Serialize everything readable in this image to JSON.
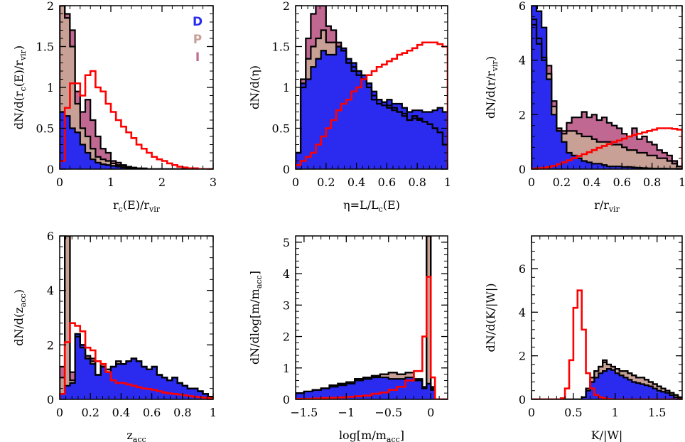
{
  "colors": {
    "D": "#2b2bf0",
    "P": "#c8a096",
    "I": "#c06892",
    "red": "#ff0000",
    "outline": "#000000"
  },
  "legend": {
    "D": "D",
    "P": "P",
    "I": "I"
  },
  "chart_data": [
    {
      "type": "histogram",
      "id": "rc",
      "ylabel_parts": [
        "dN/d(r",
        "c",
        "(E)/r",
        "vir",
        ")"
      ],
      "xlabel_parts": [
        "r",
        "c",
        "(E)/r",
        "vir",
        ""
      ],
      "xlim": [
        0,
        3
      ],
      "ylim": [
        0,
        2
      ],
      "xticks": [
        0,
        1,
        2,
        3
      ],
      "yticks": [
        0,
        0.5,
        1,
        1.5,
        2
      ],
      "ytick_labels": [
        "0",
        "0.5",
        "1",
        "1.5",
        "2"
      ],
      "legend": true,
      "edges": [
        0,
        0.1,
        0.2,
        0.3,
        0.4,
        0.5,
        0.6,
        0.7,
        0.8,
        0.9,
        1.0,
        1.1,
        1.2,
        1.3,
        1.4,
        1.5,
        1.6,
        1.7,
        1.8,
        1.9,
        2.0,
        2.1,
        2.2,
        2.3,
        2.4,
        2.5,
        2.6,
        2.7,
        2.8,
        2.9,
        3.0
      ],
      "I": [
        2.0,
        1.9,
        1.7,
        0.95,
        0.7,
        0.85,
        0.6,
        0.4,
        0.25,
        0.2,
        0.1,
        0.08,
        0.05,
        0.03,
        0.02,
        0.01,
        0.01,
        0,
        0,
        0,
        0,
        0,
        0,
        0,
        0,
        0,
        0,
        0,
        0,
        0
      ],
      "P": [
        2.0,
        1.85,
        1.5,
        0.8,
        0.5,
        0.4,
        0.25,
        0.15,
        0.12,
        0.1,
        0.07,
        0.05,
        0.04,
        0.02,
        0.01,
        0.01,
        0,
        0,
        0,
        0,
        0,
        0,
        0,
        0,
        0,
        0,
        0,
        0,
        0,
        0
      ],
      "D": [
        0.7,
        0.65,
        0.5,
        0.45,
        0.3,
        0.2,
        0.12,
        0.08,
        0.06,
        0.05,
        0.04,
        0.03,
        0.02,
        0.01,
        0.01,
        0,
        0,
        0,
        0,
        0,
        0,
        0,
        0,
        0,
        0,
        0,
        0,
        0,
        0,
        0
      ],
      "red": [
        0.1,
        0.75,
        1.05,
        1.05,
        0.9,
        1.15,
        1.2,
        1.0,
        0.95,
        0.8,
        0.7,
        0.6,
        0.52,
        0.45,
        0.38,
        0.3,
        0.25,
        0.2,
        0.15,
        0.12,
        0.1,
        0.07,
        0.05,
        0.03,
        0.02,
        0.01,
        0.01,
        0,
        0,
        0
      ]
    },
    {
      "type": "histogram",
      "id": "eta",
      "ylabel_parts": [
        "dN/d(η)"
      ],
      "xlabel_parts": [
        "η=L/L",
        "c",
        "(E)",
        "",
        ""
      ],
      "xlim": [
        0,
        1
      ],
      "ylim": [
        0,
        2
      ],
      "xticks": [
        0,
        0.2,
        0.4,
        0.6,
        0.8,
        1
      ],
      "yticks": [
        0,
        0.5,
        1,
        1.5,
        2
      ],
      "xtick_labels": [
        "0",
        "0.2",
        "0.4",
        "0.6",
        "0.8",
        "1"
      ],
      "ytick_labels": [
        "0",
        "0.5",
        "1",
        "1.5",
        "2"
      ],
      "edges": [
        0,
        0.033,
        0.067,
        0.1,
        0.133,
        0.167,
        0.2,
        0.233,
        0.267,
        0.3,
        0.333,
        0.367,
        0.4,
        0.433,
        0.467,
        0.5,
        0.533,
        0.567,
        0.6,
        0.633,
        0.667,
        0.7,
        0.733,
        0.767,
        0.8,
        0.833,
        0.867,
        0.9,
        0.933,
        0.967,
        1.0
      ],
      "I": [
        0.2,
        1.1,
        1.6,
        1.9,
        2.0,
        2.0,
        1.75,
        1.7,
        1.55,
        1.45,
        1.3,
        1.25,
        1.2,
        1.1,
        1.0,
        0.9,
        0.85,
        0.82,
        0.78,
        0.75,
        0.7,
        0.68,
        0.6,
        0.65,
        0.62,
        0.58,
        0.55,
        0.5,
        0.45,
        0.3
      ],
      "P": [
        0.2,
        1.0,
        1.35,
        1.5,
        1.6,
        1.7,
        1.55,
        1.55,
        1.5,
        1.45,
        1.3,
        1.2,
        1.15,
        1.1,
        1.05,
        0.85,
        0.8,
        0.78,
        0.75,
        0.72,
        0.7,
        0.65,
        0.6,
        0.62,
        0.6,
        0.58,
        0.55,
        0.5,
        0.45,
        0.3
      ],
      "D": [
        0.2,
        1.05,
        1.1,
        1.25,
        1.35,
        1.45,
        1.4,
        1.4,
        1.5,
        1.48,
        1.35,
        1.3,
        1.2,
        1.15,
        1.05,
        0.95,
        0.85,
        0.82,
        0.85,
        0.8,
        0.8,
        0.75,
        0.7,
        0.72,
        0.72,
        0.7,
        0.7,
        0.72,
        0.75,
        0.7
      ],
      "red": [
        0.05,
        0.1,
        0.15,
        0.2,
        0.3,
        0.4,
        0.5,
        0.6,
        0.72,
        0.8,
        0.85,
        0.95,
        1.0,
        1.1,
        1.15,
        1.2,
        1.25,
        1.28,
        1.32,
        1.35,
        1.4,
        1.42,
        1.45,
        1.48,
        1.52,
        1.55,
        1.55,
        1.55,
        1.53,
        1.5
      ]
    },
    {
      "type": "histogram",
      "id": "r",
      "ylabel_parts": [
        "dN/d(r/r",
        "vir",
        ")"
      ],
      "xlabel_parts": [
        "r/r",
        "vir",
        "",
        "",
        ""
      ],
      "xlim": [
        0,
        1
      ],
      "ylim": [
        0,
        6
      ],
      "xticks": [
        0,
        0.2,
        0.4,
        0.6,
        0.8,
        1
      ],
      "yticks": [
        0,
        2,
        4,
        6
      ],
      "xtick_labels": [
        "0",
        "0.2",
        "0.4",
        "0.6",
        "0.8",
        "1"
      ],
      "ytick_labels": [
        "0",
        "2",
        "4",
        "6"
      ],
      "edges": [
        0,
        0.033,
        0.067,
        0.1,
        0.133,
        0.167,
        0.2,
        0.233,
        0.267,
        0.3,
        0.333,
        0.367,
        0.4,
        0.433,
        0.467,
        0.5,
        0.533,
        0.567,
        0.6,
        0.633,
        0.667,
        0.7,
        0.733,
        0.767,
        0.8,
        0.833,
        0.867,
        0.9,
        0.933,
        0.967,
        1.0
      ],
      "I": [
        5.5,
        4.8,
        4.1,
        3.8,
        2.5,
        1.5,
        1.4,
        1.7,
        1.9,
        1.9,
        2.1,
        1.9,
        2.0,
        1.8,
        1.9,
        1.7,
        1.6,
        1.5,
        1.3,
        1.2,
        1.5,
        1.1,
        1.2,
        1.0,
        0.9,
        0.7,
        0.6,
        0.5,
        0.3,
        0.1
      ],
      "P": [
        5.3,
        4.6,
        4.0,
        3.5,
        2.3,
        1.4,
        1.3,
        1.4,
        1.4,
        1.3,
        1.2,
        1.2,
        1.1,
        1.0,
        1.0,
        1.0,
        0.9,
        0.9,
        0.8,
        0.7,
        0.7,
        0.6,
        0.6,
        0.5,
        0.5,
        0.4,
        0.4,
        0.3,
        0.2,
        0.1
      ],
      "D": [
        6.0,
        5.8,
        5.2,
        3.3,
        2.0,
        1.4,
        1.0,
        0.6,
        0.5,
        0.4,
        0.3,
        0.25,
        0.2,
        0.2,
        0.15,
        0.1,
        0.1,
        0.1,
        0.08,
        0.08,
        0.06,
        0.05,
        0.04,
        0.03,
        0.02,
        0.02,
        0.02,
        0.01,
        0.01,
        0.01
      ],
      "red": [
        0.02,
        0.03,
        0.05,
        0.08,
        0.12,
        0.18,
        0.25,
        0.32,
        0.4,
        0.48,
        0.55,
        0.62,
        0.7,
        0.78,
        0.85,
        0.92,
        1.0,
        1.05,
        1.12,
        1.2,
        1.25,
        1.3,
        1.35,
        1.4,
        1.45,
        1.5,
        1.5,
        1.5,
        1.48,
        1.45
      ]
    },
    {
      "type": "histogram",
      "id": "zacc",
      "ylabel_parts": [
        "dN/d(z",
        "acc",
        ")"
      ],
      "xlabel_parts": [
        "z",
        "acc",
        "",
        "",
        ""
      ],
      "xlim": [
        0,
        1
      ],
      "ylim": [
        0,
        6
      ],
      "xticks": [
        0,
        0.2,
        0.4,
        0.6,
        0.8,
        1
      ],
      "yticks": [
        0,
        2,
        4,
        6
      ],
      "xtick_labels": [
        "0",
        "0.2",
        "0.4",
        "0.6",
        "0.8",
        "1"
      ],
      "ytick_labels": [
        "0",
        "2",
        "4",
        "6"
      ],
      "edges": [
        0,
        0.033,
        0.067,
        0.1,
        0.133,
        0.167,
        0.2,
        0.233,
        0.267,
        0.3,
        0.333,
        0.367,
        0.4,
        0.433,
        0.467,
        0.5,
        0.533,
        0.567,
        0.6,
        0.633,
        0.667,
        0.7,
        0.733,
        0.767,
        0.8,
        0.833,
        0.867,
        0.9,
        0.933,
        0.967,
        1.0
      ],
      "I": [
        1.2,
        6.0,
        1.0,
        2.4,
        2.0,
        1.6,
        1.5,
        0.9,
        1.3,
        1.1,
        1.2,
        1.4,
        1.3,
        1.4,
        1.5,
        1.4,
        1.2,
        1.1,
        1.2,
        0.9,
        0.8,
        0.7,
        0.8,
        0.6,
        0.5,
        0.4,
        0.4,
        0.3,
        0.2,
        0.1
      ],
      "P": [
        0.8,
        6.0,
        0.7,
        2.3,
        1.9,
        1.5,
        1.4,
        0.9,
        1.2,
        1.1,
        1.2,
        1.4,
        1.3,
        1.4,
        1.5,
        1.4,
        1.2,
        1.1,
        1.2,
        0.9,
        0.8,
        0.7,
        0.8,
        0.6,
        0.5,
        0.4,
        0.4,
        0.3,
        0.2,
        0.1
      ],
      "D": [
        0.2,
        0.5,
        0.6,
        2.4,
        2.0,
        1.5,
        1.3,
        0.9,
        1.2,
        1.0,
        1.2,
        1.3,
        1.3,
        1.4,
        1.5,
        1.4,
        1.2,
        1.1,
        1.2,
        0.9,
        0.8,
        0.7,
        0.8,
        0.6,
        0.5,
        0.4,
        0.4,
        0.3,
        0.2,
        0.1
      ],
      "red": [
        0.2,
        2.1,
        2.8,
        2.7,
        2.5,
        1.9,
        1.8,
        1.4,
        1.3,
        1.0,
        0.7,
        0.6,
        0.6,
        0.55,
        0.5,
        0.45,
        0.4,
        0.38,
        0.35,
        0.3,
        0.25,
        0.22,
        0.2,
        0.18,
        0.15,
        0.12,
        0.1,
        0.08,
        0.06,
        0.04
      ]
    },
    {
      "type": "histogram",
      "id": "logm",
      "ylabel_parts": [
        "dN/dlog[m/m",
        "acc",
        "]"
      ],
      "xlabel_parts": [
        "log[m/m",
        "acc",
        "]",
        "",
        ""
      ],
      "xlim": [
        -1.6,
        0.2
      ],
      "ylim": [
        0,
        5.2
      ],
      "xticks": [
        -1.5,
        -1,
        -0.5,
        0
      ],
      "yticks": [
        0,
        1,
        2,
        3,
        4,
        5
      ],
      "xtick_labels": [
        "−1.5",
        "−1",
        "−0.5",
        "0"
      ],
      "ytick_labels": [
        "0",
        "1",
        "2",
        "3",
        "4",
        "5"
      ],
      "edges": [
        -1.6,
        -1.5,
        -1.4,
        -1.3,
        -1.2,
        -1.1,
        -1.0,
        -0.9,
        -0.8,
        -0.7,
        -0.6,
        -0.5,
        -0.4,
        -0.3,
        -0.2,
        -0.1,
        -0.05,
        0.0,
        0.05,
        0.1,
        0.2
      ],
      "I": [
        0.2,
        0.25,
        0.3,
        0.35,
        0.45,
        0.5,
        0.55,
        0.65,
        0.7,
        0.75,
        0.8,
        0.85,
        0.8,
        0.85,
        0.65,
        0.4,
        5.2,
        0.4,
        0.0,
        0.0
      ],
      "P": [
        0.2,
        0.25,
        0.3,
        0.35,
        0.45,
        0.5,
        0.55,
        0.65,
        0.7,
        0.75,
        0.8,
        0.85,
        0.8,
        0.85,
        0.6,
        0.35,
        5.2,
        0.35,
        0.0,
        0.0
      ],
      "D": [
        0.2,
        0.25,
        0.3,
        0.35,
        0.4,
        0.45,
        0.5,
        0.6,
        0.65,
        0.7,
        0.7,
        0.65,
        0.65,
        0.7,
        0.6,
        0.35,
        0.5,
        0.3,
        0.0,
        0.0
      ],
      "red": [
        0.02,
        0.02,
        0.03,
        0.04,
        0.05,
        0.06,
        0.08,
        0.1,
        0.12,
        0.18,
        0.22,
        0.3,
        0.4,
        0.6,
        0.9,
        2.0,
        3.9,
        0.7,
        0.0,
        0.0
      ]
    },
    {
      "type": "histogram",
      "id": "virial",
      "ylabel_parts": [
        "dN/d(K/|W|)"
      ],
      "xlabel_parts": [
        "K/|W|",
        "",
        "",
        "",
        ""
      ],
      "xlim": [
        0,
        1.8
      ],
      "ylim": [
        0,
        7.5
      ],
      "xticks": [
        0,
        0.5,
        1,
        1.5
      ],
      "yticks": [
        0,
        2,
        4,
        6
      ],
      "xtick_labels": [
        "0",
        "0.5",
        "1",
        "1.5"
      ],
      "ytick_labels": [
        "0",
        "2",
        "4",
        "6"
      ],
      "edges": [
        0,
        0.05,
        0.1,
        0.15,
        0.2,
        0.25,
        0.3,
        0.35,
        0.4,
        0.45,
        0.5,
        0.55,
        0.6,
        0.65,
        0.7,
        0.75,
        0.8,
        0.85,
        0.9,
        0.95,
        1.0,
        1.05,
        1.1,
        1.15,
        1.2,
        1.25,
        1.3,
        1.35,
        1.4,
        1.45,
        1.5,
        1.55,
        1.6,
        1.65,
        1.7,
        1.75,
        1.8
      ],
      "I": [
        0,
        0,
        0,
        0,
        0,
        0,
        0,
        0,
        0,
        0,
        0,
        0,
        0.1,
        0.5,
        1.0,
        1.3,
        1.5,
        1.8,
        1.6,
        1.5,
        1.4,
        1.3,
        1.3,
        1.2,
        1.1,
        1.0,
        1.0,
        0.9,
        0.8,
        0.7,
        0.6,
        0.5,
        0.4,
        0.3,
        0.2,
        0.1
      ],
      "P": [
        0,
        0,
        0,
        0,
        0,
        0,
        0,
        0,
        0,
        0,
        0,
        0,
        0.1,
        0.5,
        1.0,
        1.3,
        1.5,
        1.7,
        1.6,
        1.5,
        1.4,
        1.3,
        1.3,
        1.2,
        1.1,
        1.0,
        1.0,
        0.9,
        0.8,
        0.7,
        0.6,
        0.5,
        0.4,
        0.3,
        0.2,
        0.1
      ],
      "D": [
        0,
        0,
        0,
        0,
        0,
        0,
        0,
        0,
        0,
        0,
        0,
        0,
        0.1,
        0.4,
        0.8,
        1.0,
        1.2,
        1.3,
        1.4,
        1.35,
        1.2,
        1.1,
        1.0,
        0.9,
        0.8,
        0.75,
        0.7,
        0.65,
        0.6,
        0.5,
        0.4,
        0.35,
        0.3,
        0.2,
        0.1,
        0.05
      ],
      "red": [
        0,
        0,
        0,
        0,
        0,
        0,
        0,
        0.05,
        0.5,
        1.8,
        4.2,
        5.0,
        3.2,
        1.2,
        0.5,
        0.2,
        0.1,
        0.05,
        0.02,
        0,
        0,
        0,
        0,
        0,
        0,
        0,
        0,
        0,
        0,
        0,
        0,
        0,
        0,
        0,
        0,
        0
      ]
    }
  ]
}
